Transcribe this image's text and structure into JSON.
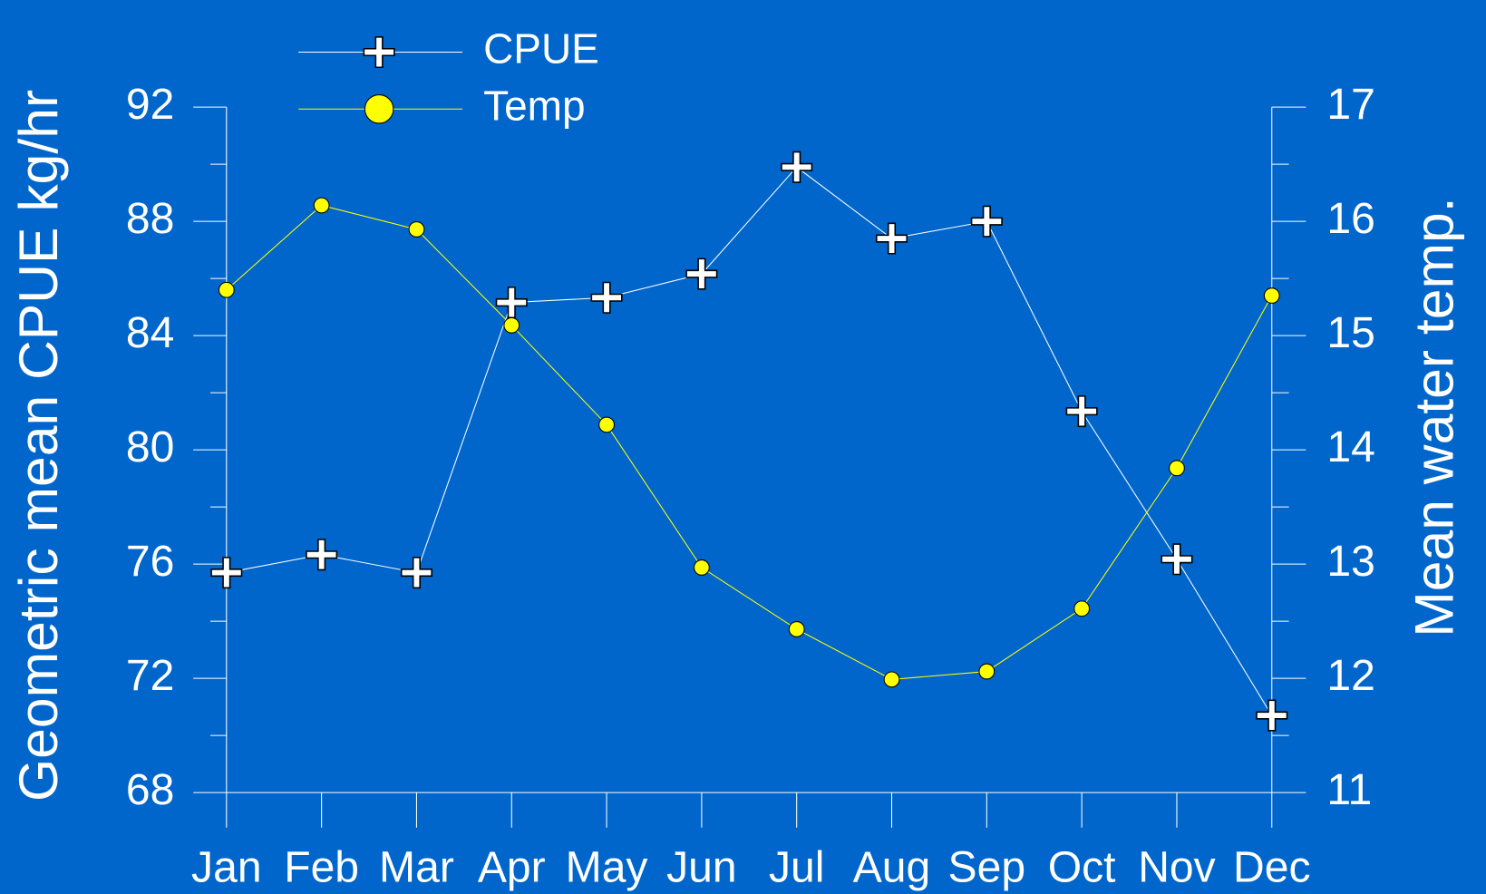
{
  "chart_data": {
    "type": "line",
    "y_label": "Geometric mean CPUE kg/hr",
    "y2_label": "Mean water temp.",
    "categories": [
      "Jan",
      "Feb",
      "Mar",
      "Apr",
      "May",
      "Jun",
      "Jul",
      "Aug",
      "Sep",
      "Oct",
      "Nov",
      "Dec"
    ],
    "series": [
      {
        "name": "CPUE",
        "color": "#ffffff",
        "marker": "plus",
        "values": [
          75.7,
          76.33,
          75.7,
          85.16,
          85.33,
          86.16,
          89.9,
          87.4,
          88.0,
          81.35,
          76.17,
          70.7
        ]
      },
      {
        "name": "Temp",
        "color": "#ffff00",
        "marker": "circle",
        "axis": "y2",
        "values": [
          15.4,
          16.14,
          15.93,
          15.09,
          14.22,
          12.97,
          12.43,
          11.99,
          12.06,
          12.61,
          13.84,
          15.35
        ]
      }
    ],
    "ylim": [
      68,
      92
    ],
    "yticks": [
      68,
      72,
      76,
      80,
      84,
      88,
      92
    ],
    "y2lim": [
      11,
      17
    ],
    "y2ticks": [
      11,
      12,
      13,
      14,
      15,
      16,
      17
    ],
    "minor_ticks": true,
    "legend": "top-left"
  }
}
